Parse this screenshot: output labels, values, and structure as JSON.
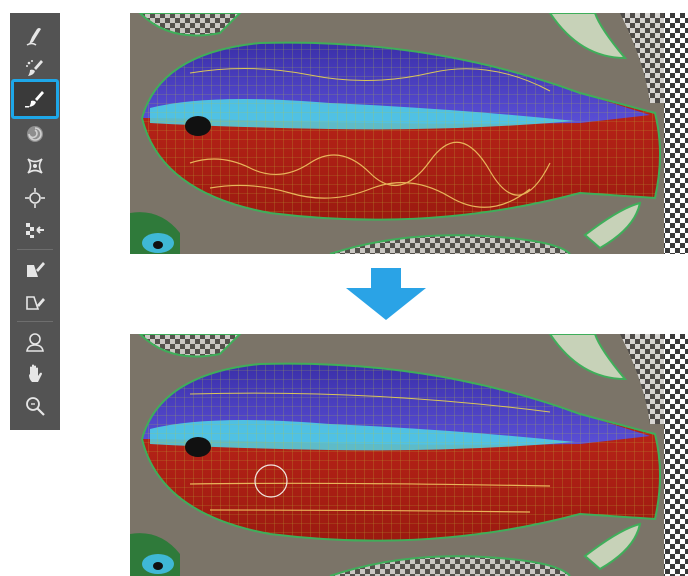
{
  "toolbar": {
    "tools": [
      {
        "name": "forward-warp-tool",
        "icon": "finger-smudge-icon"
      },
      {
        "name": "reconstruct-tool",
        "icon": "brush-sparkle-icon"
      },
      {
        "name": "smooth-tool",
        "icon": "brush-smooth-icon",
        "active": true
      },
      {
        "name": "twirl-clockwise-tool",
        "icon": "twirl-icon"
      },
      {
        "name": "pucker-tool",
        "icon": "pucker-icon"
      },
      {
        "name": "bloat-tool",
        "icon": "bloat-icon"
      },
      {
        "name": "push-left-tool",
        "icon": "push-left-icon"
      },
      {
        "name": "freeze-mask-tool",
        "icon": "freeze-mask-icon"
      },
      {
        "name": "thaw-mask-tool",
        "icon": "thaw-mask-icon"
      },
      {
        "name": "face-tool",
        "icon": "face-icon"
      },
      {
        "name": "hand-tool",
        "icon": "hand-icon"
      },
      {
        "name": "zoom-tool",
        "icon": "magnifier-icon"
      }
    ],
    "active_color": "#1ea7e8"
  },
  "arrow": {
    "icon": "arrow-down-icon",
    "color": "#2aa3e6"
  },
  "canvas_top": {
    "name": "before-mesh-preview"
  },
  "canvas_bottom": {
    "name": "after-mesh-preview"
  }
}
